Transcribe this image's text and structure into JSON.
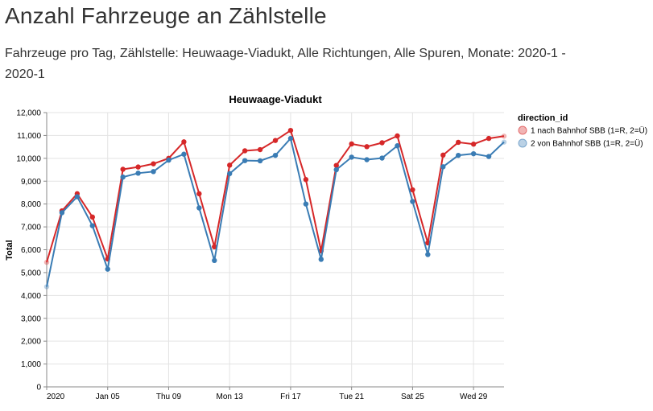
{
  "page": {
    "title": "Anzahl Fahrzeuge an Zählstelle",
    "subtitle": "Fahrzeuge pro Tag, Zählstelle: Heuwaage-Viadukt, Alle Richtungen, Alle Spuren, Monate: 2020-1 - 2020-1"
  },
  "chart_data": {
    "type": "line",
    "title": "Heuwaage-Viadukt",
    "xlabel": "",
    "ylabel": "Total",
    "ylim": [
      0,
      12000
    ],
    "yticks": [
      0,
      1000,
      2000,
      3000,
      4000,
      5000,
      6000,
      7000,
      8000,
      9000,
      10000,
      11000,
      12000
    ],
    "ytick_labels": [
      "0",
      "1,000",
      "2,000",
      "3,000",
      "4,000",
      "5,000",
      "6,000",
      "7,000",
      "8,000",
      "9,000",
      "10,000",
      "11,000",
      "12,000"
    ],
    "xlim": [
      "2020-01-01",
      "2020-01-31"
    ],
    "xticks": [
      "2020-01-01",
      "2020-01-05",
      "2020-01-09",
      "2020-01-13",
      "2020-01-17",
      "2020-01-21",
      "2020-01-25",
      "2020-01-29"
    ],
    "xtick_labels": [
      "2020",
      "Jan 05",
      "Thu 09",
      "Mon 13",
      "Fri 17",
      "Tue 21",
      "Sat 25",
      "Wed 29"
    ],
    "grid": true,
    "legend": {
      "title": "direction_id",
      "position": "right"
    },
    "x": [
      "2020-01-01",
      "2020-01-02",
      "2020-01-03",
      "2020-01-04",
      "2020-01-05",
      "2020-01-06",
      "2020-01-07",
      "2020-01-08",
      "2020-01-09",
      "2020-01-10",
      "2020-01-11",
      "2020-01-12",
      "2020-01-13",
      "2020-01-14",
      "2020-01-15",
      "2020-01-16",
      "2020-01-17",
      "2020-01-18",
      "2020-01-19",
      "2020-01-20",
      "2020-01-21",
      "2020-01-22",
      "2020-01-23",
      "2020-01-24",
      "2020-01-25",
      "2020-01-26",
      "2020-01-27",
      "2020-01-28",
      "2020-01-29",
      "2020-01-30",
      "2020-01-31"
    ],
    "series": [
      {
        "name": "1 nach Bahnhof SBB (1=R, 2=Ü)",
        "color": "#d62728",
        "values": [
          5450,
          7700,
          8450,
          7430,
          5600,
          9520,
          9620,
          9760,
          10000,
          10720,
          8450,
          6130,
          9700,
          10330,
          10380,
          10780,
          11220,
          9070,
          5950,
          9690,
          10630,
          10510,
          10680,
          10980,
          8620,
          6300,
          10140,
          10700,
          10620,
          10870,
          10970
        ]
      },
      {
        "name": "2 von Bahnhof SBB (1=R, 2=Ü)",
        "color": "#3a7cb4",
        "values": [
          4380,
          7620,
          8320,
          7050,
          5150,
          9180,
          9350,
          9420,
          9920,
          10180,
          7830,
          5530,
          9330,
          9900,
          9890,
          10130,
          10870,
          8000,
          5580,
          9500,
          10050,
          9940,
          10010,
          10550,
          8110,
          5790,
          9630,
          10130,
          10200,
          10080,
          10710
        ]
      }
    ]
  }
}
